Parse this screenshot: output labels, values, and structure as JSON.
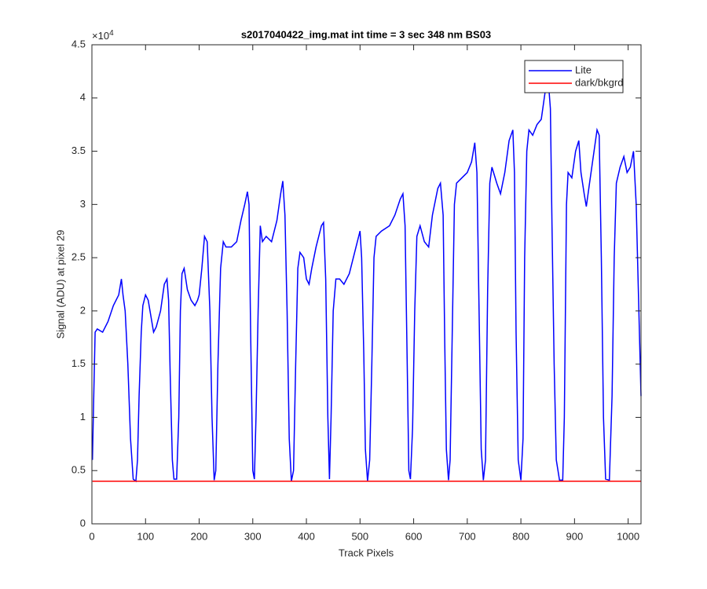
{
  "chart_data": {
    "type": "line",
    "title": "s2017040422_img.mat int time = 3 sec  348 nm BS03",
    "x_label": "Track Pixels",
    "y_label": "Signal (ADU) at pixel 29",
    "y_exponent": {
      "base": "×10",
      "power": "4"
    },
    "xlim": [
      0,
      1024
    ],
    "ylim": [
      0,
      45000
    ],
    "xticks": [
      0,
      100,
      200,
      300,
      400,
      500,
      600,
      700,
      800,
      900,
      1000
    ],
    "yticks": [
      0,
      {
        "value": 5000,
        "label": "0.5"
      },
      {
        "value": 10000,
        "label": "1"
      },
      {
        "value": 15000,
        "label": "1.5"
      },
      {
        "value": 20000,
        "label": "2"
      },
      {
        "value": 25000,
        "label": "2.5"
      },
      {
        "value": 30000,
        "label": "3"
      },
      {
        "value": 35000,
        "label": "3.5"
      },
      {
        "value": 40000,
        "label": "4"
      },
      {
        "value": 45000,
        "label": "4.5"
      }
    ],
    "grid": false,
    "legend": "upper right",
    "series": [
      {
        "name": "Lite",
        "color": "#0000ff",
        "x": [
          1,
          3,
          6,
          10,
          20,
          30,
          40,
          50,
          55,
          58,
          62,
          67,
          72,
          77,
          82,
          85,
          88,
          92,
          95,
          100,
          105,
          110,
          115,
          120,
          128,
          135,
          140,
          143,
          146,
          150,
          153,
          158,
          162,
          165,
          168,
          172,
          178,
          185,
          192,
          197,
          200,
          205,
          210,
          215,
          220,
          224,
          228,
          231,
          235,
          240,
          245,
          250,
          260,
          270,
          278,
          285,
          290,
          293,
          296,
          300,
          303,
          306,
          310,
          314,
          318,
          325,
          335,
          345,
          352,
          356,
          360,
          364,
          368,
          372,
          376,
          380,
          384,
          388,
          395,
          400,
          405,
          410,
          418,
          428,
          432,
          436,
          440,
          443,
          446,
          450,
          455,
          462,
          470,
          480,
          490,
          500,
          503,
          507,
          510,
          514,
          518,
          522,
          526,
          530,
          540,
          555,
          565,
          575,
          580,
          584,
          588,
          591,
          594,
          598,
          602,
          606,
          612,
          620,
          628,
          635,
          645,
          650,
          655,
          658,
          661,
          665,
          668,
          672,
          676,
          680,
          690,
          700,
          708,
          714,
          718,
          722,
          726,
          730,
          734,
          738,
          742,
          746,
          755,
          762,
          770,
          778,
          785,
          788,
          791,
          795,
          800,
          804,
          807,
          811,
          815,
          822,
          830,
          838,
          845,
          852,
          855,
          858,
          862,
          866,
          872,
          878,
          881,
          885,
          888,
          895,
          902,
          908,
          912,
          918,
          922,
          928,
          935,
          942,
          946,
          950,
          954,
          958,
          965,
          970,
          974,
          978,
          985,
          992,
          998,
          1004,
          1010,
          1015,
          1020,
          1024
        ],
        "values": [
          6000,
          11000,
          18000,
          18300,
          18000,
          19000,
          20500,
          21500,
          23000,
          21500,
          20000,
          15000,
          8000,
          4200,
          4000,
          6000,
          12000,
          18000,
          20500,
          21500,
          21000,
          19500,
          18000,
          18500,
          20000,
          22500,
          23000,
          21000,
          14000,
          6000,
          4200,
          4200,
          10000,
          20000,
          23500,
          24000,
          22000,
          21000,
          20500,
          21000,
          21500,
          24000,
          27000,
          26500,
          20000,
          10000,
          4100,
          5000,
          15000,
          24000,
          26500,
          26000,
          26000,
          26500,
          28500,
          30000,
          31200,
          30000,
          18000,
          5000,
          4200,
          10000,
          20000,
          28000,
          26500,
          27000,
          26500,
          28500,
          31000,
          32200,
          29000,
          20000,
          8000,
          4000,
          5000,
          15000,
          24000,
          25500,
          25000,
          23000,
          22500,
          24000,
          26000,
          28000,
          28300,
          23000,
          10000,
          4200,
          10000,
          20000,
          23000,
          23000,
          22500,
          23500,
          25500,
          27500,
          25000,
          16000,
          7000,
          4000,
          6000,
          15000,
          25000,
          27000,
          27500,
          28000,
          29000,
          30500,
          31000,
          28000,
          15000,
          5000,
          4200,
          9000,
          20000,
          27000,
          28000,
          26500,
          26000,
          29000,
          31500,
          32000,
          29000,
          17000,
          7000,
          4100,
          6000,
          18000,
          30000,
          32000,
          32500,
          33000,
          34000,
          35800,
          33000,
          20000,
          7000,
          4100,
          6000,
          22000,
          32000,
          33500,
          32000,
          31000,
          33000,
          36000,
          37000,
          33000,
          18000,
          6000,
          4100,
          8000,
          25000,
          35000,
          37000,
          36500,
          37500,
          38000,
          40500,
          41000,
          39000,
          28000,
          15000,
          6000,
          4100,
          4100,
          10000,
          30000,
          33000,
          32500,
          35000,
          36000,
          33000,
          31000,
          29800,
          32000,
          34500,
          37000,
          36500,
          25000,
          10000,
          4200,
          4100,
          12000,
          25000,
          32000,
          33500,
          34500,
          33000,
          33500,
          35000,
          30000,
          20000,
          12000
        ]
      },
      {
        "name": "dark/bkgrd",
        "color": "#ff0000",
        "x": [
          1,
          1024
        ],
        "values": [
          4000,
          4000
        ]
      }
    ]
  }
}
